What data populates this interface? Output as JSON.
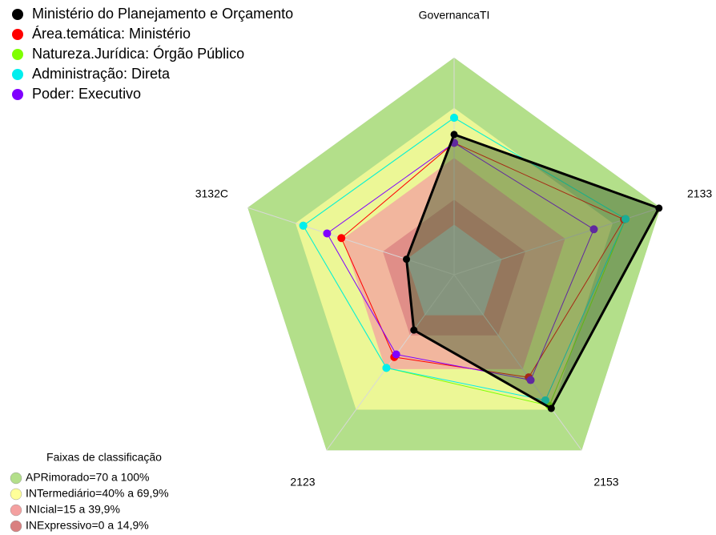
{
  "chart_data": {
    "type": "radar",
    "categories": [
      "GovernancaTI",
      "2133",
      "2153",
      "2123",
      "3132C"
    ],
    "rlim": [
      -30,
      100
    ],
    "series": [
      {
        "name": "Ministério do Planejamento e Orçamento",
        "color": "#000000",
        "values": [
          54,
          99,
          69,
          11,
          0
        ]
      },
      {
        "name": "Área.temática: Ministério",
        "color": "#ff0000",
        "values": [
          49,
          77,
          46,
          31,
          41
        ]
      },
      {
        "name": "Natureza.Jurídica: Órgão Público",
        "color": "#7fff00",
        "values": [
          64,
          78,
          67,
          39,
          65
        ]
      },
      {
        "name": "Administração: Direta",
        "color": "#00eeee",
        "values": [
          64,
          78,
          63,
          39,
          65
        ]
      },
      {
        "name": "Poder: Executivo",
        "color": "#8000ff",
        "values": [
          49,
          58,
          48,
          29,
          50
        ]
      }
    ],
    "bands_title": "Faixas de classificação",
    "bands": [
      {
        "label": "APRimorado=70 a 100%",
        "color": "#b3df8a",
        "from": 70,
        "to": 100
      },
      {
        "label": "INTermediário=40% a 69,9%",
        "color": "#ffff99",
        "from": 40,
        "to": 69.9
      },
      {
        "label": "INIcial=15 a 39,9%",
        "color": "#f4a0a0",
        "from": 15,
        "to": 39.9
      },
      {
        "label": "INExpressivo=0 a 14,9%",
        "color": "#d98080",
        "from": 0,
        "to": 14.9
      }
    ]
  }
}
